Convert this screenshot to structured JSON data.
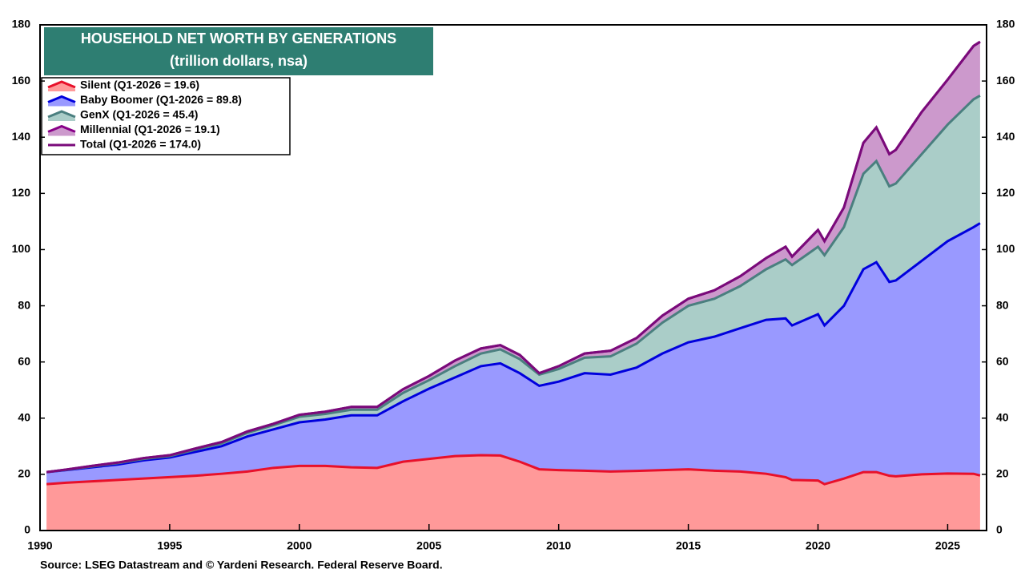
{
  "chart_data": {
    "type": "stacked-area",
    "title": "HOUSEHOLD NET WORTH BY GENERATIONS",
    "subtitle": "(trillion dollars, nsa)",
    "source": "Source: LSEG Datastream and © Yardeni Research. Federal Reserve Board.",
    "x": [
      1990.25,
      1991,
      1992,
      1993,
      1994,
      1995,
      1996,
      1997,
      1998,
      1999,
      2000,
      2001,
      2002,
      2003,
      2004,
      2005,
      2006,
      2007,
      2007.75,
      2008.5,
      2009.25,
      2010,
      2011,
      2012,
      2013,
      2014,
      2015,
      2016,
      2017,
      2018,
      2018.75,
      2019,
      2020,
      2020.25,
      2021,
      2021.75,
      2022.25,
      2022.75,
      2023,
      2024,
      2025,
      2026,
      2026.25
    ],
    "series": [
      {
        "name": "Silent (Q1-2026 = 19.6)",
        "color": "#e8102a",
        "fill": "#ff9999",
        "values": [
          16.5,
          17,
          17.5,
          18,
          18.5,
          19,
          19.5,
          20.2,
          21,
          22.3,
          23,
          23,
          22.5,
          22.3,
          24.5,
          25.5,
          26.5,
          26.8,
          26.7,
          24.5,
          21.8,
          21.5,
          21.3,
          21,
          21.2,
          21.5,
          21.8,
          21.3,
          21,
          20.2,
          19,
          18,
          17.8,
          16.5,
          18.5,
          20.8,
          20.8,
          19.5,
          19.3,
          20,
          20.3,
          20.2,
          19.6
        ]
      },
      {
        "name": "Baby Boomer (Q1-2026 = 89.8)",
        "color": "#0000dd",
        "fill": "#9999ff",
        "values": [
          4.3,
          4.5,
          5,
          5.5,
          6.5,
          7,
          8.5,
          9.8,
          12.5,
          13.7,
          15.5,
          16.5,
          18.5,
          18.7,
          21.5,
          25,
          28,
          31.7,
          32.8,
          31.5,
          29.7,
          31.5,
          34.7,
          34.5,
          36.8,
          41.5,
          45.2,
          47.7,
          51,
          54.8,
          56.5,
          55,
          59.2,
          56.5,
          61.5,
          72.2,
          74.7,
          69,
          69.7,
          76,
          82.7,
          87.8,
          89.8
        ]
      },
      {
        "name": "GenX (Q1-2026 = 45.4)",
        "color": "#4a7f7f",
        "fill": "#aacdc8",
        "values": [
          0,
          0.1,
          0.3,
          0.5,
          0.5,
          0.5,
          0.8,
          1,
          1.3,
          1.5,
          2,
          2,
          2,
          2,
          3,
          3,
          4,
          4.5,
          5,
          5,
          4,
          4.5,
          5.5,
          6.5,
          8.5,
          11,
          13,
          13.5,
          15,
          18,
          21,
          21.5,
          24,
          25,
          28,
          34,
          36,
          34,
          34.5,
          38,
          41.5,
          45.5,
          45.4
        ]
      },
      {
        "name": "Millennial (Q1-2026 = 19.1)",
        "color": "#880088",
        "fill": "#cc99cc",
        "values": [
          0,
          0.1,
          0.2,
          0.2,
          0.3,
          0.3,
          0.4,
          0.5,
          0.5,
          0.5,
          0.7,
          0.8,
          1,
          1,
          1.3,
          1.5,
          2,
          1.8,
          1.5,
          1.5,
          0.5,
          1,
          1.5,
          2,
          2,
          2.5,
          2.5,
          3,
          3.5,
          4,
          4.5,
          3,
          6,
          5,
          7,
          11,
          12,
          11.5,
          12,
          15,
          16,
          19,
          19.1
        ]
      },
      {
        "name": "Total (Q1-2026 = 174.0)",
        "color": "#7a0a7a",
        "stack": false,
        "values": [
          20.8,
          21.7,
          23,
          24.2,
          25.8,
          26.8,
          29.2,
          31.5,
          35.3,
          38,
          41.2,
          42.3,
          44,
          44,
          50.3,
          55,
          60.5,
          64.8,
          66,
          62.5,
          56,
          58.5,
          63,
          64,
          68.5,
          76.5,
          82.5,
          85.5,
          90.5,
          97,
          101,
          97.5,
          107,
          103,
          115,
          138,
          143.5,
          134,
          135.5,
          149,
          160.5,
          172.5,
          174
        ]
      }
    ],
    "xlim": [
      1990,
      2026.5
    ],
    "xticks": [
      1990,
      1995,
      2000,
      2005,
      2010,
      2015,
      2020,
      2025
    ],
    "ylim": [
      0,
      180
    ],
    "yticks": [
      0,
      20,
      40,
      60,
      80,
      100,
      120,
      140,
      160,
      180
    ],
    "y2lim": [
      0,
      180
    ],
    "y2ticks": [
      0,
      20,
      40,
      60,
      80,
      100,
      120,
      140,
      160,
      180
    ],
    "legend": "top-left",
    "grid": false
  }
}
